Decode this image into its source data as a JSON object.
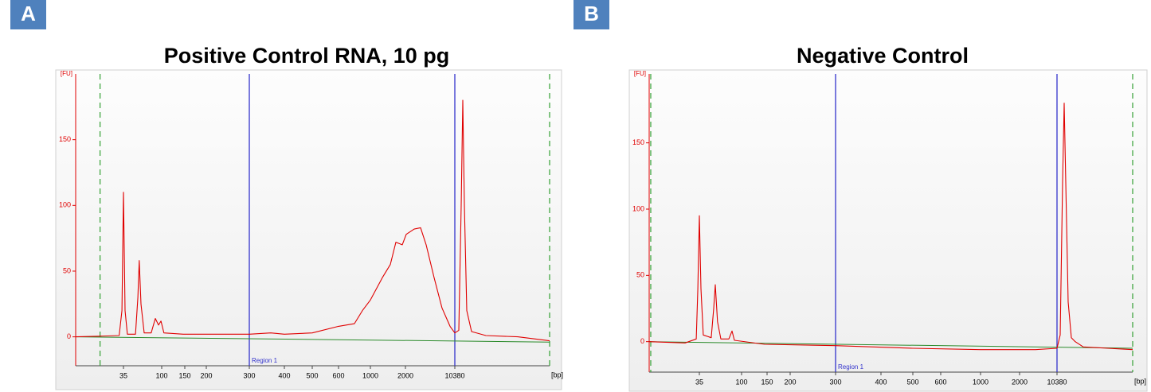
{
  "chart_data": [
    {
      "type": "line",
      "panel_label": "A",
      "title": "Positive Control RNA, 10 pg",
      "ylabel": "[FU]",
      "xlabel": "[bp]",
      "xlim": [
        9,
        244000
      ],
      "ylim": [
        -22,
        200
      ],
      "xticks": [
        35,
        100,
        150,
        200,
        300,
        400,
        500,
        600,
        1000,
        2000,
        10380
      ],
      "yticks": [
        0,
        50,
        100,
        150
      ],
      "x": [
        9,
        18,
        31,
        33.5,
        35,
        36.6,
        39,
        48.7,
        52,
        54,
        56.6,
        61.8,
        75,
        84,
        91.6,
        98,
        104,
        146,
        234,
        300,
        358,
        400,
        500,
        600,
        774,
        880,
        1000,
        1267,
        1483,
        1656,
        1878,
        2054,
        2680,
        3313,
        3990,
        5200,
        6776,
        8850,
        10380,
        11850,
        12830,
        13520,
        14260,
        15450,
        18110,
        29240,
        84500,
        244000
      ],
      "series": [
        {
          "color": "#e00000",
          "values": [
            0,
            0.5,
            1,
            20,
            110,
            20,
            2,
            2,
            30,
            58,
            25,
            3,
            3,
            14,
            9,
            12,
            3,
            2,
            2,
            2,
            3,
            2,
            3,
            8,
            10,
            20,
            28,
            45,
            55,
            72,
            70,
            78,
            82,
            83,
            70,
            45,
            22,
            8,
            3,
            5,
            100,
            180,
            100,
            20,
            4,
            1,
            0,
            -3
          ]
        }
      ],
      "baseline": {
        "color": "#2a8a2a",
        "x": [
          9,
          244000
        ],
        "values": [
          0,
          -4
        ]
      },
      "region": {
        "label": "Region 1",
        "x": [
          300,
          10380
        ],
        "color": "#3333cc"
      },
      "bounds": {
        "x": [
          18,
          244000
        ],
        "color": "#33a033"
      }
    },
    {
      "type": "line",
      "panel_label": "B",
      "title": "Negative Control",
      "ylabel": "[FU]",
      "xlabel": "[bp]",
      "xlim": [
        10,
        290000
      ],
      "ylim": [
        -23,
        202
      ],
      "xticks": [
        35,
        100,
        150,
        200,
        300,
        400,
        500,
        600,
        1000,
        2000,
        10380
      ],
      "yticks": [
        0,
        50,
        100,
        150
      ],
      "x": [
        10,
        24.5,
        32.4,
        33.7,
        35,
        36.4,
        38.6,
        47,
        50,
        52,
        55,
        59.7,
        72.8,
        78.8,
        83.7,
        144,
        300,
        500,
        1000,
        4030,
        10380,
        11940,
        13250,
        14210,
        15240,
        16930,
        19500,
        23200,
        33000,
        290000
      ],
      "series": [
        {
          "color": "#e00000",
          "values": [
            0,
            -1,
            2,
            40,
            95,
            40,
            5,
            3,
            25,
            43,
            15,
            2,
            2,
            8,
            1,
            -2,
            -3,
            -5,
            -6,
            -6,
            -5,
            5,
            120,
            180,
            120,
            30,
            3,
            0,
            -4,
            -6
          ]
        }
      ],
      "baseline": {
        "color": "#2a8a2a",
        "x": [
          10,
          290000
        ],
        "values": [
          0,
          -5
        ]
      },
      "region": {
        "label": "Region 1",
        "x": [
          300,
          10380
        ],
        "color": "#3333cc"
      },
      "bounds": {
        "x": [
          10.4,
          290000
        ],
        "color": "#33a033"
      }
    }
  ]
}
